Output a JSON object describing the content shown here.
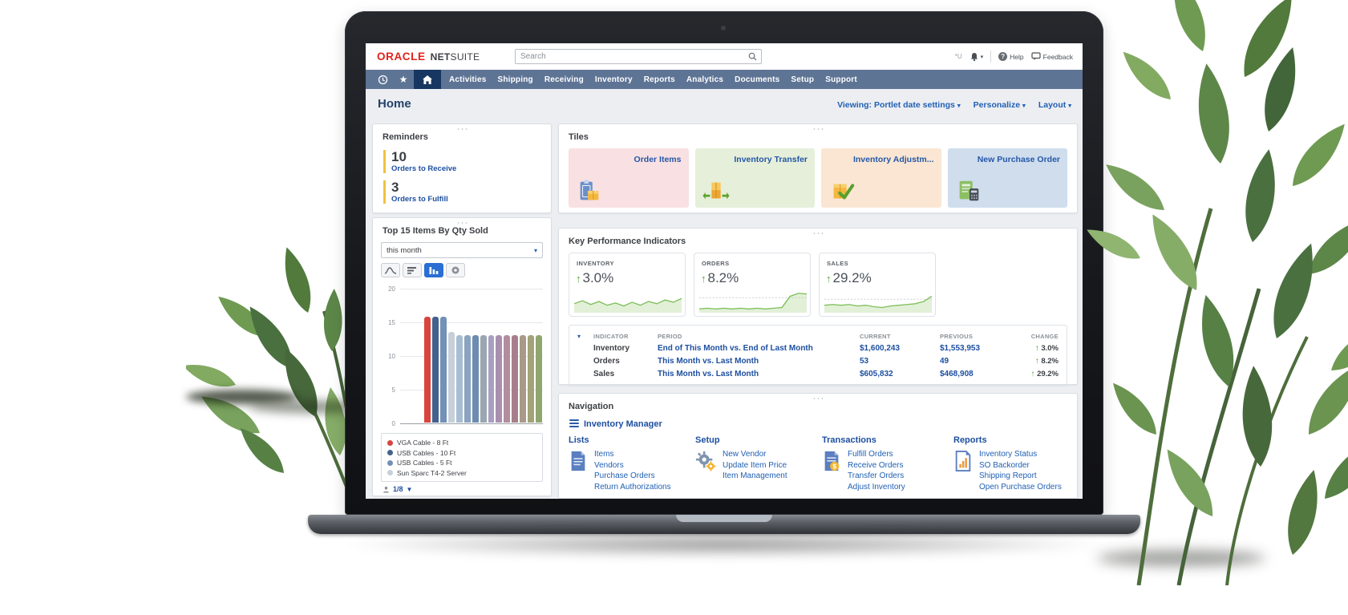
{
  "glyphs": {
    "caret_down": "▾",
    "filter_down": "▼",
    "up_arrow": "↑",
    "star": "★"
  },
  "topbar": {
    "logo_oracle": "ORACLE",
    "logo_net": "NET",
    "logo_suite": "SUITE",
    "search_placeholder": "Search",
    "role_text": "*U",
    "help_label": "Help",
    "feedback_label": "Feedback"
  },
  "navbar": {
    "items": [
      "Activities",
      "Shipping",
      "Receiving",
      "Inventory",
      "Reports",
      "Analytics",
      "Documents",
      "Setup",
      "Support"
    ]
  },
  "page_header": {
    "title": "Home",
    "viewing": "Viewing: Portlet date settings",
    "personalize": "Personalize",
    "layout": "Layout"
  },
  "reminders": {
    "title": "Reminders",
    "items": [
      {
        "count": "10",
        "label": "Orders to Receive"
      },
      {
        "count": "3",
        "label": "Orders to Fulfill"
      }
    ]
  },
  "tiles": {
    "title": "Tiles",
    "items": [
      {
        "label": "Order Items",
        "bg": "#f9e0e2",
        "icon": "order-items-icon"
      },
      {
        "label": "Inventory Transfer",
        "bg": "#e6efda",
        "icon": "inventory-transfer-icon"
      },
      {
        "label": "Inventory Adjustm...",
        "bg": "#fae6d3",
        "icon": "inventory-adjustment-icon"
      },
      {
        "label": "New Purchase Order",
        "bg": "#cfdded",
        "icon": "new-purchase-order-icon"
      }
    ]
  },
  "top_items": {
    "title": "Top 15 Items By Qty Sold",
    "range_value": "this month",
    "pagination": "1/8",
    "legend": [
      {
        "label": "VGA Cable - 8 Ft",
        "color": "#d8453e"
      },
      {
        "label": "USB Cables - 10 Ft",
        "color": "#44618e"
      },
      {
        "label": "USB Cables - 5 Ft",
        "color": "#7390b6"
      },
      {
        "label": "Sun Sparc T4-2 Server",
        "color": "#c7d0d9"
      }
    ],
    "chart_data": {
      "type": "bar",
      "title": "Top 15 Items By Qty Sold",
      "period": "this month",
      "ylim": [
        0,
        20
      ],
      "yticks": [
        0,
        5,
        10,
        15,
        20
      ],
      "legend_visible": [
        "VGA Cable - 8 Ft",
        "USB Cables - 10 Ft",
        "USB Cables - 5 Ft",
        "Sun Sparc T4-2 Server"
      ],
      "values": [
        15.8,
        15.8,
        15.8,
        13.5,
        13,
        13,
        13,
        13,
        13,
        13,
        13,
        13,
        13,
        13,
        13
      ],
      "colors": [
        "#d8453e",
        "#44618e",
        "#7390b6",
        "#c7d0d9",
        "#a8bdd2",
        "#8aa3bf",
        "#6d8cb0",
        "#9aa6b0",
        "#a89fc2",
        "#a98fae",
        "#b28d9e",
        "#a77f8b",
        "#a89a88",
        "#a3a379",
        "#8ea76e"
      ]
    }
  },
  "kpi": {
    "title": "Key Performance Indicators",
    "cards": [
      {
        "name": "INVENTORY",
        "change": "3.0%",
        "spark": [
          12,
          16,
          11,
          15,
          10,
          13,
          9,
          14,
          10,
          15,
          12,
          17,
          14,
          19
        ],
        "ref": null
      },
      {
        "name": "ORDERS",
        "change": "8.2%",
        "spark": [
          5,
          6,
          5,
          6,
          5,
          6,
          5,
          6,
          5,
          6,
          7,
          22,
          26,
          25
        ],
        "ref": 20
      },
      {
        "name": "SALES",
        "change": "29.2%",
        "spark": [
          10,
          11,
          10,
          11,
          9,
          10,
          8,
          7,
          9,
          10,
          11,
          12,
          15,
          22
        ],
        "ref": 18
      }
    ],
    "table": {
      "headers": [
        "INDICATOR",
        "PERIOD",
        "CURRENT",
        "PREVIOUS",
        "CHANGE"
      ],
      "rows": [
        {
          "indicator": "Inventory",
          "period": "End of This Month vs. End of Last Month",
          "current": "$1,600,243",
          "previous": "$1,553,953",
          "change": "3.0%"
        },
        {
          "indicator": "Orders",
          "period": "This Month vs. Last Month",
          "current": "53",
          "previous": "49",
          "change": "8.2%"
        },
        {
          "indicator": "Sales",
          "period": "This Month vs. Last Month",
          "current": "$605,832",
          "previous": "$468,908",
          "change": "29.2%"
        }
      ]
    }
  },
  "navigation": {
    "title": "Navigation",
    "manager_label": "Inventory Manager",
    "columns": [
      {
        "title": "Lists",
        "icon": "list-document-icon",
        "items": [
          "Items",
          "Vendors",
          "Purchase Orders",
          "Return Authorizations"
        ]
      },
      {
        "title": "Setup",
        "icon": "gear-icon",
        "items": [
          "New Vendor",
          "Update Item Price",
          "Item Management"
        ]
      },
      {
        "title": "Transactions",
        "icon": "transactions-document-icon",
        "items": [
          "Fulfill Orders",
          "Receive Orders",
          "Transfer Orders",
          "Adjust Inventory"
        ]
      },
      {
        "title": "Reports",
        "icon": "reports-document-icon",
        "items": [
          "Inventory Status",
          "SO Backorder",
          "Shipping Report",
          "Open Purchase Orders"
        ]
      }
    ]
  }
}
